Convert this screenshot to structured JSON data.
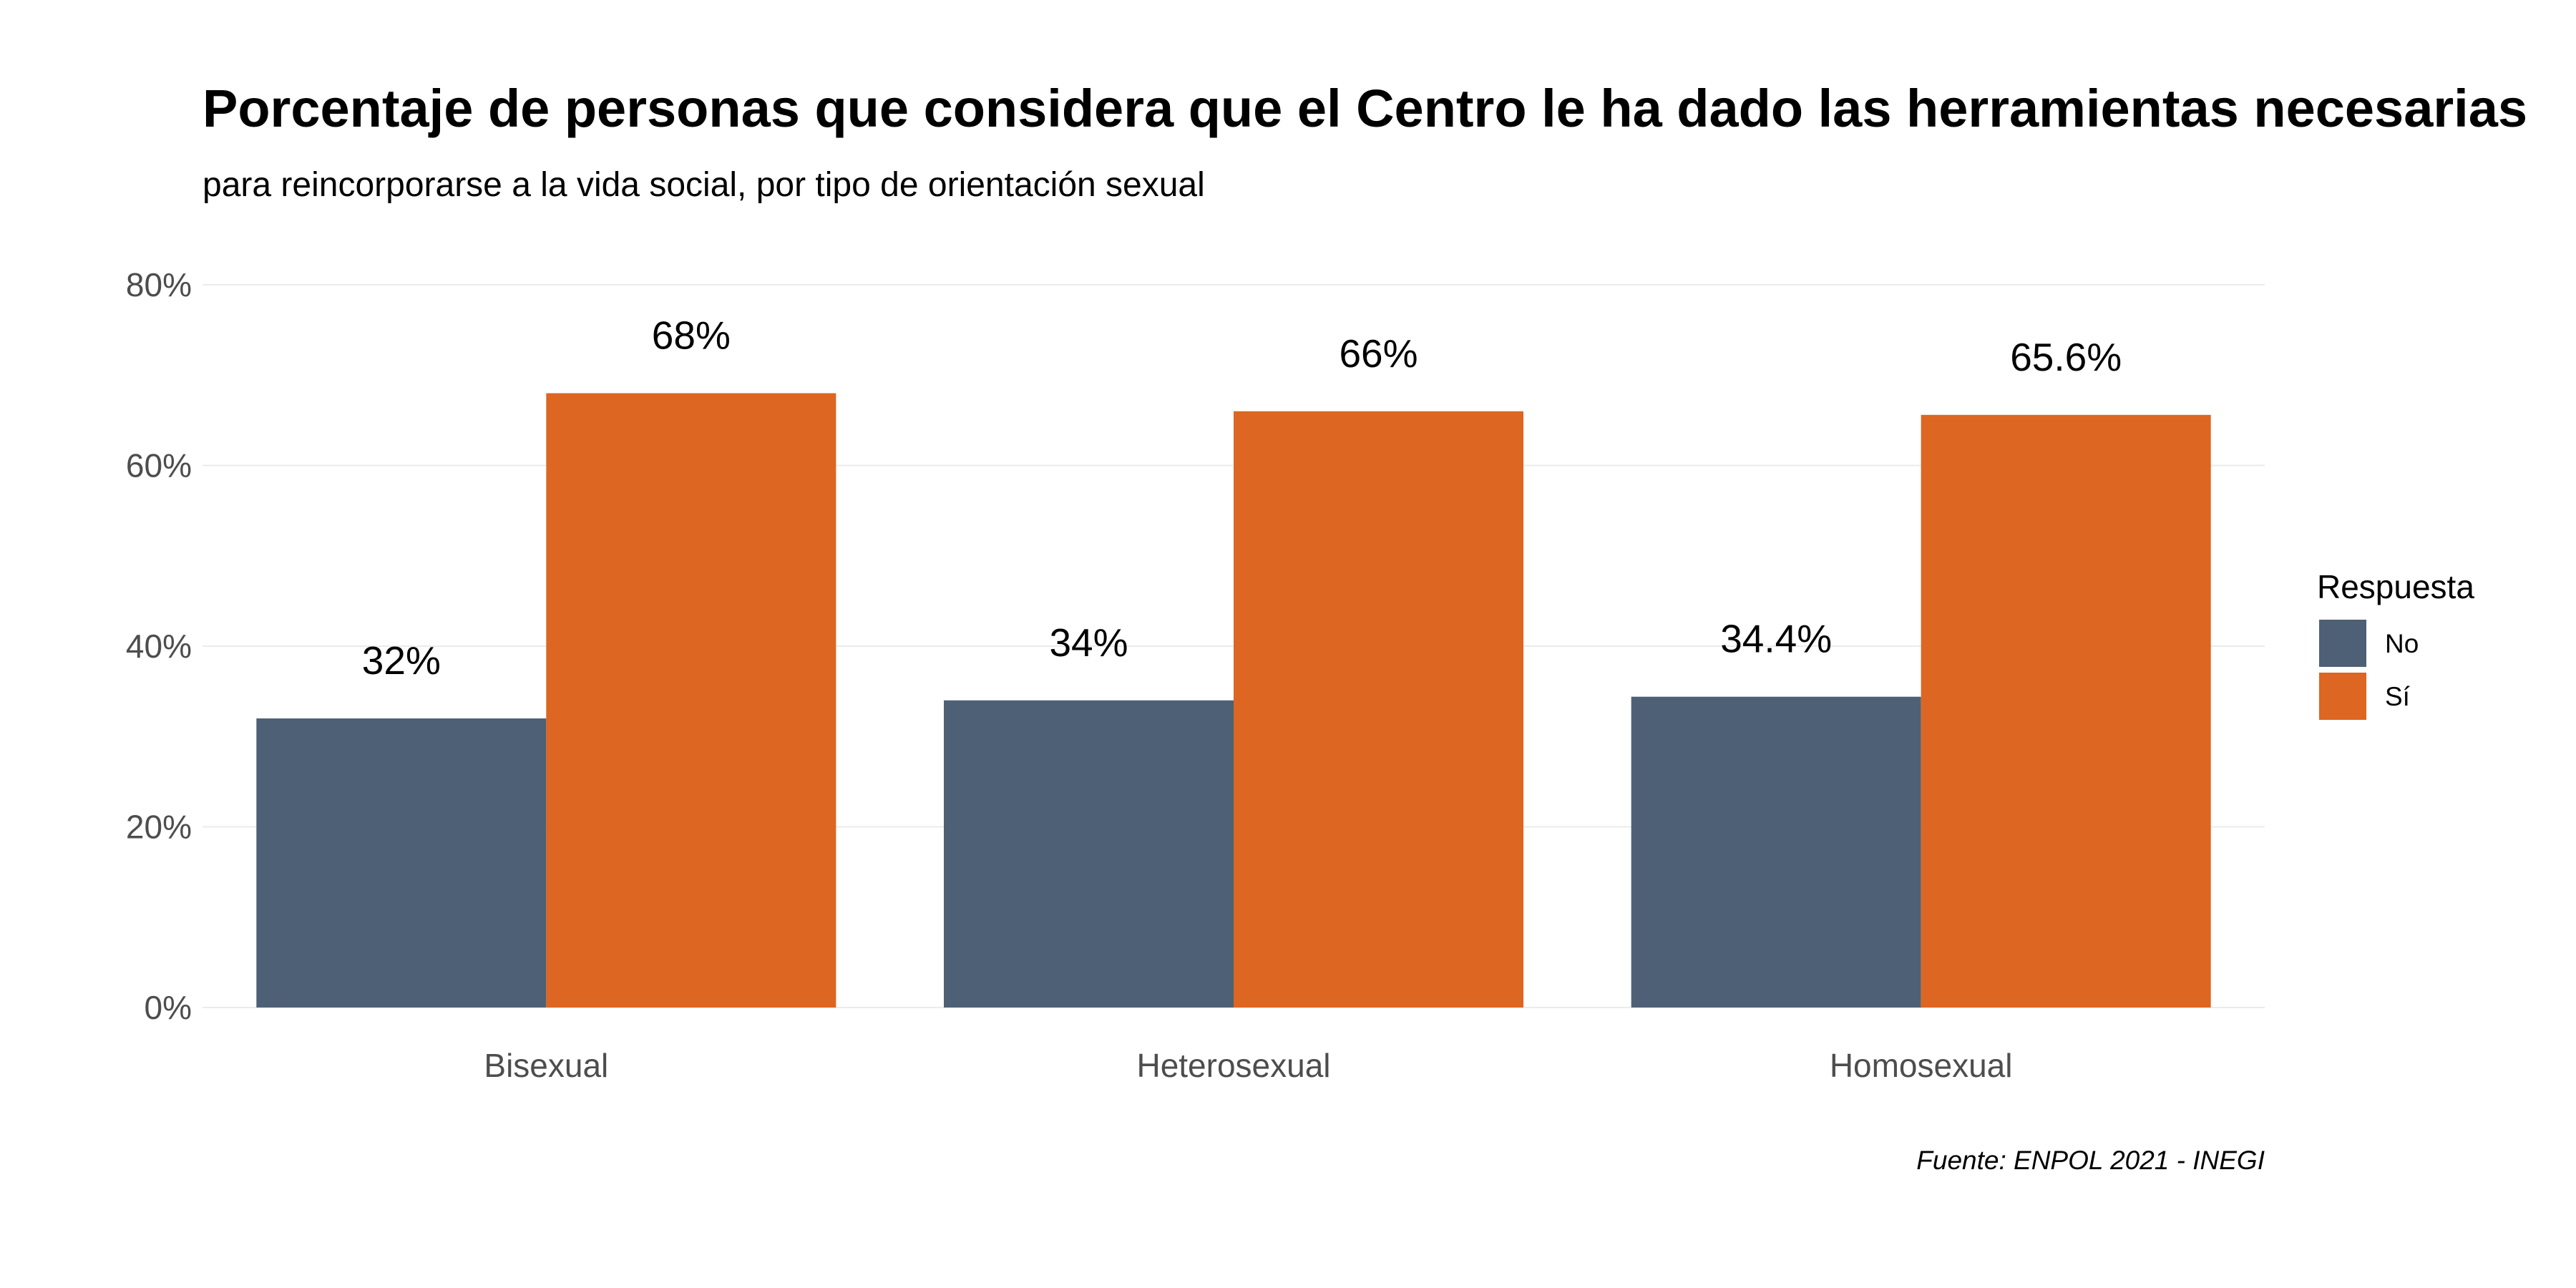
{
  "chart_data": {
    "type": "bar",
    "title": "Porcentaje de personas que considera que el Centro le ha dado las herramientas necesarias",
    "subtitle": "para reincorporarse a la vida social, por tipo de orientación sexual",
    "caption": "Fuente: ENPOL 2021 - INEGI",
    "categories": [
      "Bisexual",
      "Heterosexual",
      "Homosexual"
    ],
    "series": [
      {
        "name": "No",
        "color": "#4e6076",
        "values": [
          32,
          34,
          34.4
        ],
        "labels": [
          "32%",
          "34%",
          "34.4%"
        ]
      },
      {
        "name": "Sí",
        "color": "#dc6622",
        "values": [
          68,
          66,
          65.6
        ],
        "labels": [
          "68%",
          "66%",
          "65.6%"
        ]
      }
    ],
    "ylim": [
      0,
      80
    ],
    "yticks": [
      0,
      20,
      40,
      60,
      80
    ],
    "ytick_labels": [
      "0%",
      "20%",
      "40%",
      "60%",
      "80%"
    ],
    "grid": true,
    "legend": {
      "title": "Respuesta",
      "position": "right"
    }
  }
}
